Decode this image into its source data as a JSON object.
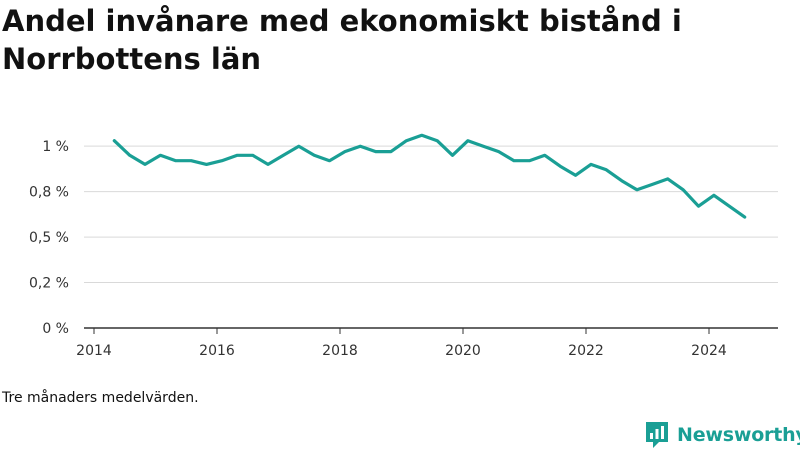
{
  "chart_data": {
    "type": "line",
    "title": "Andel invånare med ekonomiskt bistånd i Norrbottens län",
    "xlabel": "",
    "ylabel": "",
    "xlim": [
      2014,
      2025.1
    ],
    "ylim": [
      0,
      1.1
    ],
    "x_ticks": [
      2014,
      2016,
      2018,
      2020,
      2022,
      2024
    ],
    "x_tick_labels": [
      "2014",
      "2016",
      "2018",
      "2020",
      "2022",
      "2024"
    ],
    "y_ticks": [
      0,
      0.25,
      0.5,
      0.75,
      1.0
    ],
    "y_tick_labels": [
      "0 %",
      "0,2 %",
      "0,5 %",
      "0,8 %",
      "1 %"
    ],
    "grid": true,
    "line_color": "#1a9f95",
    "series": [
      {
        "x": [
          2014.33,
          2014.58,
          2014.83,
          2015.08,
          2015.33,
          2015.58,
          2015.83,
          2016.08,
          2016.33,
          2016.58,
          2016.83,
          2017.08,
          2017.33,
          2017.58,
          2017.83,
          2018.08,
          2018.33,
          2018.58,
          2018.83,
          2019.08,
          2019.33,
          2019.58,
          2019.83,
          2020.08,
          2020.33,
          2020.58,
          2020.83,
          2021.08,
          2021.33,
          2021.58,
          2021.83,
          2022.08,
          2022.33,
          2022.58,
          2022.83,
          2023.08,
          2023.33,
          2023.58,
          2023.83,
          2024.08,
          2024.33,
          2024.58
        ],
        "values": [
          1.03,
          0.95,
          0.9,
          0.95,
          0.92,
          0.92,
          0.9,
          0.92,
          0.95,
          0.95,
          0.9,
          0.95,
          1.0,
          0.95,
          0.92,
          0.97,
          1.0,
          0.97,
          0.97,
          1.03,
          1.06,
          1.03,
          0.95,
          1.03,
          1.0,
          0.97,
          0.92,
          0.92,
          0.95,
          0.89,
          0.84,
          0.9,
          0.87,
          0.81,
          0.76,
          0.79,
          0.82,
          0.76,
          0.67,
          0.73,
          0.67,
          0.61
        ]
      }
    ]
  },
  "caption": "Tre månaders medelvärden.",
  "logo": {
    "text": "Newsworthy",
    "icon": "newsworthy-logo-icon"
  }
}
